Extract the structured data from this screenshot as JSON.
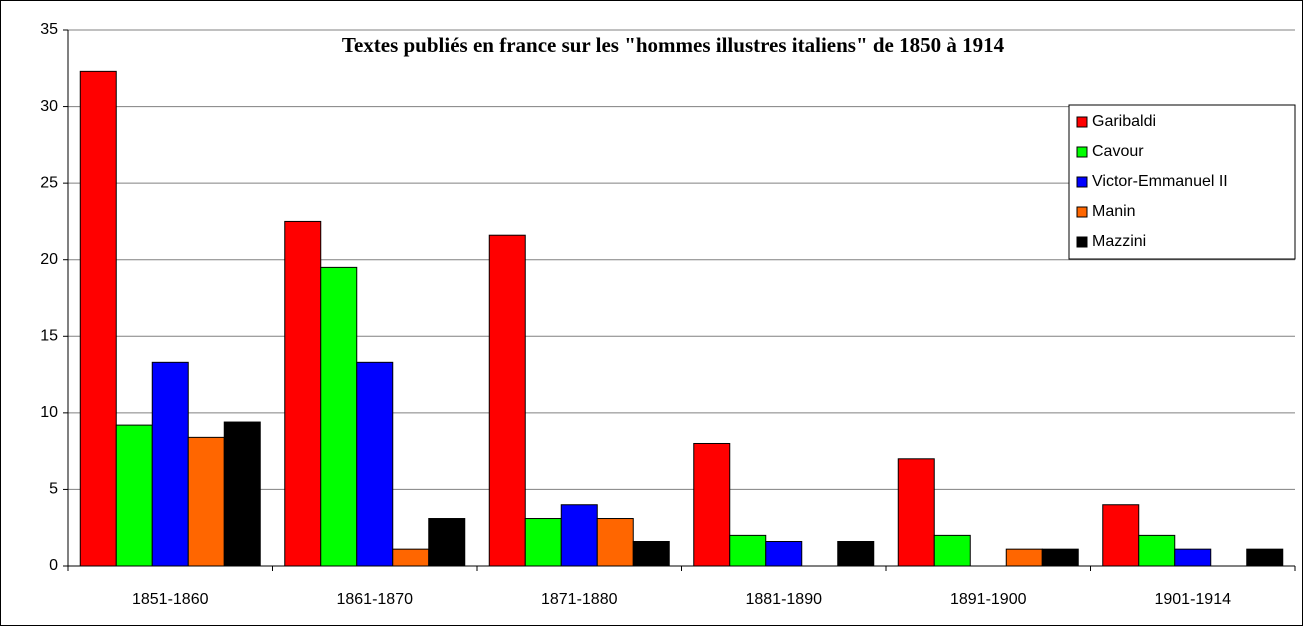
{
  "chart_data": {
    "type": "bar",
    "title": "Textes publiés en france sur les \"hommes illustres italiens\" de 1850 à 1914",
    "categories": [
      "1851-1860",
      "1861-1870",
      "1871-1880",
      "1881-1890",
      "1891-1900",
      "1901-1914"
    ],
    "series": [
      {
        "name": "Garibaldi",
        "color": "#ff0000",
        "values": [
          32.3,
          22.5,
          21.6,
          8.0,
          7.0,
          4.0
        ]
      },
      {
        "name": "Cavour",
        "color": "#00ff00",
        "values": [
          9.2,
          19.5,
          3.1,
          2.0,
          2.0,
          2.0
        ]
      },
      {
        "name": "Victor-Emmanuel II",
        "color": "#0000ff",
        "values": [
          13.3,
          13.3,
          4.0,
          1.6,
          0,
          1.1
        ]
      },
      {
        "name": "Manin",
        "color": "#ff6600",
        "values": [
          8.4,
          1.1,
          3.1,
          0,
          1.1,
          0
        ]
      },
      {
        "name": "Mazzini",
        "color": "#000000",
        "values": [
          9.4,
          3.1,
          1.6,
          1.6,
          1.1,
          1.1
        ]
      }
    ],
    "ylim": [
      0,
      35
    ],
    "yticks": [
      0,
      5,
      10,
      15,
      20,
      25,
      30,
      35
    ],
    "grid": true,
    "legend": "right"
  }
}
